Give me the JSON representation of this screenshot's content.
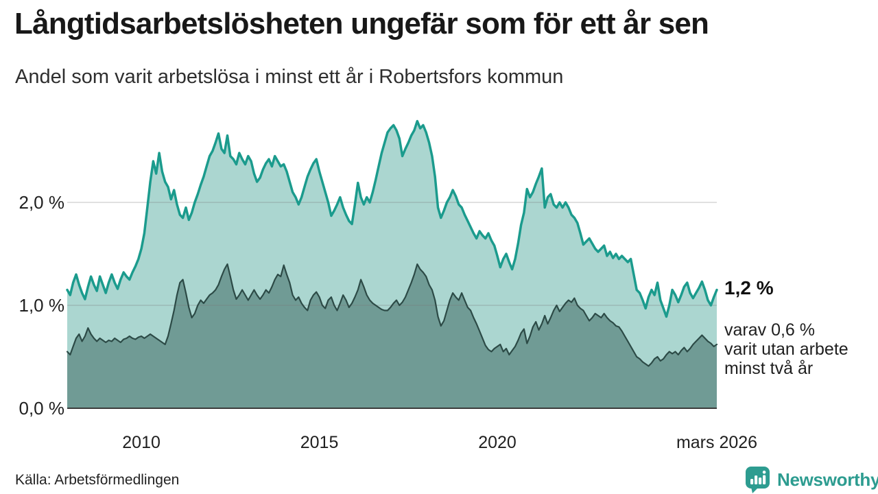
{
  "header": {
    "title": "Långtidsarbetslösheten ungefär som för ett år sen",
    "subtitle": "Andel som varit arbetslösa i minst ett år i Robertsfors kommun"
  },
  "annotation": {
    "value_label": "1,2 %",
    "detail_lines": [
      "varav 0,6 %",
      "varit utan arbete",
      "minst två år"
    ]
  },
  "footer": {
    "source": "Källa: Arbetsförmedlingen",
    "brand": "Newsworthy"
  },
  "colors": {
    "total_line": "#1b9b8d",
    "total_fill": "#abd6d0",
    "two_year_line": "#2c4a46",
    "two_year_fill": "#709b95",
    "grid": "#d9d9d9",
    "axis": "#3b3b3b",
    "brand_teal": "#2d9c90"
  },
  "chart_data": {
    "type": "area",
    "title": "Långtidsarbetslösheten ungefär som för ett år sen",
    "subtitle": "Andel som varit arbetslösa i minst ett år i Robertsfors kommun",
    "unit": "%",
    "frequency": "monthly",
    "x_domain": [
      2007.9167,
      2026.1667
    ],
    "ylim": [
      0,
      2.9
    ],
    "grid": "horizontal",
    "y_ticks": [
      {
        "value": 2.0,
        "label": "2,0 %"
      },
      {
        "value": 1.0,
        "label": "1,0 %"
      },
      {
        "value": 0.0,
        "label": "0,0 %"
      }
    ],
    "x_ticks": [
      {
        "t": 2010.0,
        "label": "2010"
      },
      {
        "t": 2015.0,
        "label": "2015"
      },
      {
        "t": 2020.0,
        "label": "2020"
      },
      {
        "t": 2026.1667,
        "label": "mars 2026"
      }
    ],
    "series": [
      {
        "name": "Arbetslösa minst ett år",
        "end_value_label": "1,2 %",
        "color": "#1b9b8d",
        "fill": "#abd6d0",
        "line_width": 3.5,
        "values": [
          1.15,
          1.1,
          1.22,
          1.3,
          1.2,
          1.12,
          1.06,
          1.18,
          1.28,
          1.2,
          1.14,
          1.28,
          1.2,
          1.12,
          1.22,
          1.3,
          1.22,
          1.16,
          1.25,
          1.32,
          1.28,
          1.25,
          1.32,
          1.38,
          1.45,
          1.55,
          1.7,
          1.95,
          2.2,
          2.4,
          2.28,
          2.48,
          2.3,
          2.2,
          2.15,
          2.03,
          2.12,
          1.98,
          1.88,
          1.85,
          1.95,
          1.83,
          1.9,
          2.0,
          2.08,
          2.17,
          2.25,
          2.35,
          2.45,
          2.5,
          2.58,
          2.67,
          2.52,
          2.48,
          2.65,
          2.45,
          2.42,
          2.37,
          2.48,
          2.42,
          2.37,
          2.45,
          2.4,
          2.28,
          2.2,
          2.24,
          2.32,
          2.38,
          2.42,
          2.35,
          2.45,
          2.4,
          2.35,
          2.37,
          2.3,
          2.2,
          2.1,
          2.05,
          1.98,
          2.05,
          2.15,
          2.25,
          2.32,
          2.38,
          2.42,
          2.3,
          2.2,
          2.1,
          2.0,
          1.87,
          1.92,
          1.98,
          2.05,
          1.95,
          1.88,
          1.82,
          1.79,
          1.98,
          2.19,
          2.05,
          1.98,
          2.05,
          2.0,
          2.1,
          2.22,
          2.35,
          2.48,
          2.58,
          2.68,
          2.72,
          2.75,
          2.7,
          2.62,
          2.45,
          2.52,
          2.58,
          2.65,
          2.7,
          2.79,
          2.72,
          2.75,
          2.68,
          2.58,
          2.45,
          2.25,
          1.95,
          1.85,
          1.92,
          2.0,
          2.05,
          2.12,
          2.06,
          1.98,
          1.95,
          1.88,
          1.82,
          1.76,
          1.7,
          1.65,
          1.72,
          1.68,
          1.65,
          1.7,
          1.63,
          1.58,
          1.48,
          1.37,
          1.45,
          1.5,
          1.42,
          1.35,
          1.45,
          1.6,
          1.78,
          1.9,
          2.13,
          2.05,
          2.1,
          2.18,
          2.25,
          2.33,
          1.95,
          2.05,
          2.08,
          1.98,
          1.95,
          2.0,
          1.95,
          2.0,
          1.95,
          1.88,
          1.85,
          1.8,
          1.7,
          1.59,
          1.62,
          1.65,
          1.6,
          1.55,
          1.52,
          1.55,
          1.58,
          1.48,
          1.52,
          1.46,
          1.5,
          1.45,
          1.48,
          1.45,
          1.42,
          1.45,
          1.3,
          1.15,
          1.12,
          1.05,
          0.97,
          1.08,
          1.15,
          1.1,
          1.22,
          1.05,
          0.97,
          0.89,
          1.0,
          1.15,
          1.1,
          1.03,
          1.1,
          1.18,
          1.22,
          1.12,
          1.07,
          1.12,
          1.17,
          1.23,
          1.15,
          1.05,
          1.0,
          1.08,
          1.15
        ]
      },
      {
        "name": "varav utan arbete minst två år",
        "end_value_label": "0,6 %",
        "color": "#2c4a46",
        "fill": "#709b95",
        "line_width": 2.2,
        "values": [
          0.55,
          0.52,
          0.6,
          0.68,
          0.72,
          0.65,
          0.7,
          0.78,
          0.72,
          0.68,
          0.65,
          0.68,
          0.66,
          0.64,
          0.66,
          0.65,
          0.68,
          0.66,
          0.64,
          0.67,
          0.68,
          0.7,
          0.68,
          0.67,
          0.69,
          0.7,
          0.68,
          0.7,
          0.72,
          0.7,
          0.68,
          0.66,
          0.64,
          0.62,
          0.7,
          0.82,
          0.95,
          1.1,
          1.22,
          1.25,
          1.12,
          0.98,
          0.88,
          0.92,
          1.0,
          1.05,
          1.02,
          1.06,
          1.1,
          1.12,
          1.15,
          1.2,
          1.28,
          1.35,
          1.4,
          1.28,
          1.15,
          1.06,
          1.1,
          1.15,
          1.1,
          1.05,
          1.1,
          1.15,
          1.1,
          1.06,
          1.1,
          1.15,
          1.12,
          1.18,
          1.25,
          1.3,
          1.28,
          1.39,
          1.3,
          1.22,
          1.1,
          1.05,
          1.08,
          1.02,
          0.98,
          0.95,
          1.05,
          1.1,
          1.13,
          1.08,
          1.0,
          0.97,
          1.05,
          1.08,
          1.0,
          0.95,
          1.02,
          1.1,
          1.05,
          0.98,
          1.02,
          1.08,
          1.15,
          1.25,
          1.18,
          1.1,
          1.05,
          1.02,
          1.0,
          0.98,
          0.96,
          0.95,
          0.95,
          0.98,
          1.02,
          1.05,
          1.0,
          1.03,
          1.08,
          1.15,
          1.22,
          1.3,
          1.4,
          1.35,
          1.32,
          1.28,
          1.2,
          1.15,
          1.05,
          0.89,
          0.8,
          0.85,
          0.95,
          1.05,
          1.12,
          1.08,
          1.05,
          1.12,
          1.05,
          0.98,
          0.95,
          0.88,
          0.82,
          0.75,
          0.68,
          0.61,
          0.57,
          0.55,
          0.58,
          0.6,
          0.62,
          0.55,
          0.58,
          0.52,
          0.56,
          0.6,
          0.66,
          0.73,
          0.77,
          0.63,
          0.7,
          0.79,
          0.84,
          0.76,
          0.82,
          0.9,
          0.82,
          0.88,
          0.95,
          1.0,
          0.94,
          0.98,
          1.02,
          1.05,
          1.03,
          1.07,
          1.0,
          0.97,
          0.95,
          0.9,
          0.85,
          0.88,
          0.92,
          0.9,
          0.88,
          0.92,
          0.88,
          0.85,
          0.83,
          0.8,
          0.79,
          0.75,
          0.7,
          0.65,
          0.6,
          0.55,
          0.5,
          0.48,
          0.45,
          0.43,
          0.41,
          0.44,
          0.48,
          0.5,
          0.46,
          0.48,
          0.52,
          0.55,
          0.53,
          0.55,
          0.52,
          0.56,
          0.59,
          0.55,
          0.58,
          0.62,
          0.65,
          0.68,
          0.71,
          0.68,
          0.65,
          0.63,
          0.6,
          0.62
        ]
      }
    ]
  }
}
